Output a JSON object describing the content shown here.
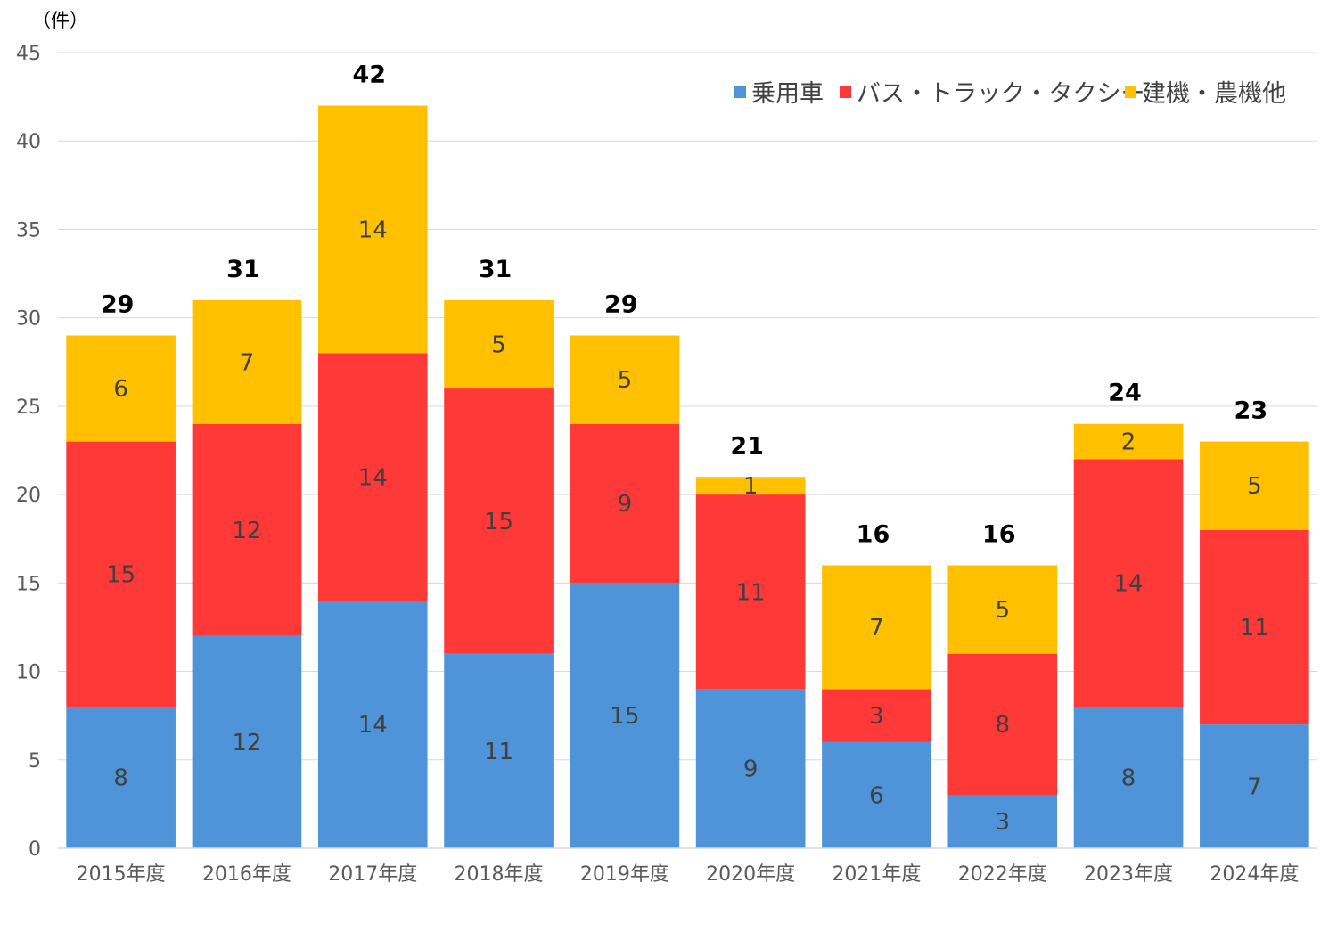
{
  "chart_data": {
    "type": "bar",
    "stacked": true,
    "unit_label": "（件）",
    "categories": [
      "2015年度",
      "2016年度",
      "2017年度",
      "2018年度",
      "2019年度",
      "2020年度",
      "2021年度",
      "2022年度",
      "2023年度",
      "2024年度"
    ],
    "series": [
      {
        "name": "乗用車",
        "color": "#4f94d9",
        "values": [
          8,
          12,
          14,
          11,
          15,
          9,
          6,
          3,
          8,
          7
        ]
      },
      {
        "name": "バス・トラック・タクシー",
        "color": "#ff3838",
        "values": [
          15,
          12,
          14,
          15,
          9,
          11,
          3,
          8,
          14,
          11
        ]
      },
      {
        "name": "建機・農機他",
        "color": "#ffc000",
        "values": [
          6,
          7,
          14,
          5,
          5,
          1,
          7,
          5,
          2,
          5
        ]
      }
    ],
    "totals": [
      29,
      31,
      42,
      31,
      29,
      21,
      16,
      16,
      24,
      23
    ],
    "ylim": [
      0,
      45
    ],
    "yticks": [
      0,
      5,
      10,
      15,
      20,
      25,
      30,
      35,
      40,
      45
    ],
    "grid": true,
    "legend_position": "top-right"
  }
}
